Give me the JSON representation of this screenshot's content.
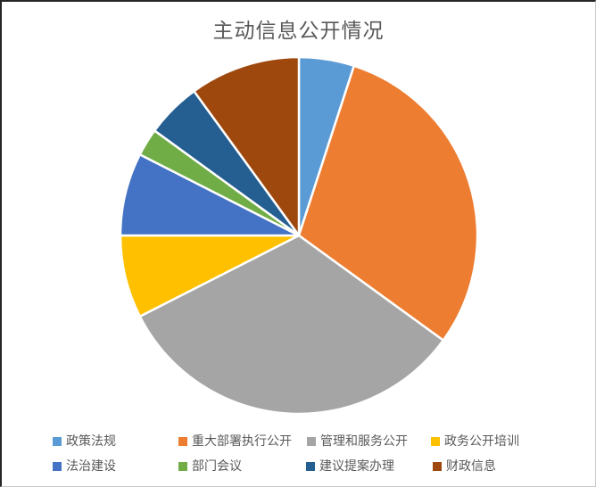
{
  "chart": {
    "title": "主动信息公开情况",
    "title_color": "#595959",
    "legend_text_color": "#595959",
    "background_color": "#ffffff"
  },
  "chart_data": {
    "type": "pie",
    "title": "主动信息公开情况",
    "categories": [
      "政策法规",
      "重大部署执行公开",
      "管理和服务公开",
      "政务公开培训",
      "法治建设",
      "部门会议",
      "建议提案办理",
      "财政信息"
    ],
    "values": [
      2,
      12,
      13,
      3,
      3,
      1,
      2,
      4
    ],
    "percentages": [
      5,
      30,
      32.5,
      7.5,
      7.5,
      2.5,
      5,
      10
    ],
    "colors": [
      "#5B9BD5",
      "#ED7D31",
      "#A5A5A5",
      "#FFC000",
      "#4472C4",
      "#70AD47",
      "#255E91",
      "#9E480E"
    ],
    "start_angle_deg": 0,
    "direction": "clockwise",
    "slice_border_color": "#FFFFFF",
    "legend_position": "bottom",
    "legend_rows": [
      [
        "政策法规",
        "重大部署执行公开",
        "管理和服务公开",
        "政务公开培训"
      ],
      [
        "法治建设",
        "部门会议",
        "建议提案办理",
        "财政信息"
      ]
    ]
  }
}
